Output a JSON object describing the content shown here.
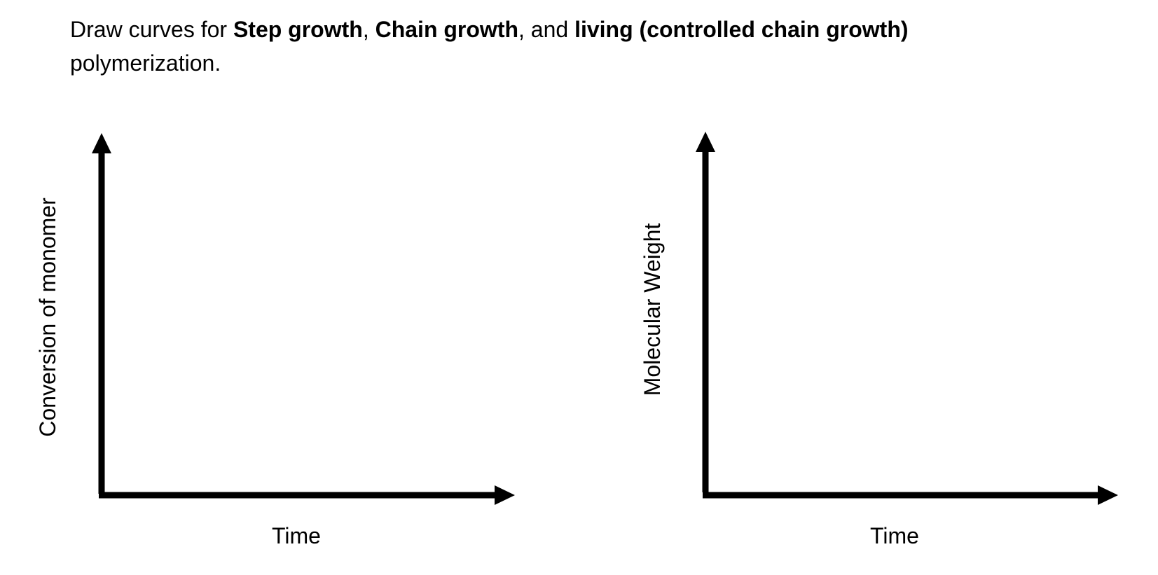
{
  "prompt": {
    "part1": "Draw curves for ",
    "step": "Step growth",
    "sep1": ", ",
    "chain": "Chain growth",
    "sep2": ", and ",
    "living": "living (controlled chain growth)",
    "part2": "polymerization."
  },
  "plots": [
    {
      "ylabel": "Conversion of monomer",
      "xlabel": "Time"
    },
    {
      "ylabel": "Molecular Weight",
      "xlabel": "Time"
    }
  ],
  "colors": {
    "ink": "#000000",
    "background": "#ffffff"
  }
}
